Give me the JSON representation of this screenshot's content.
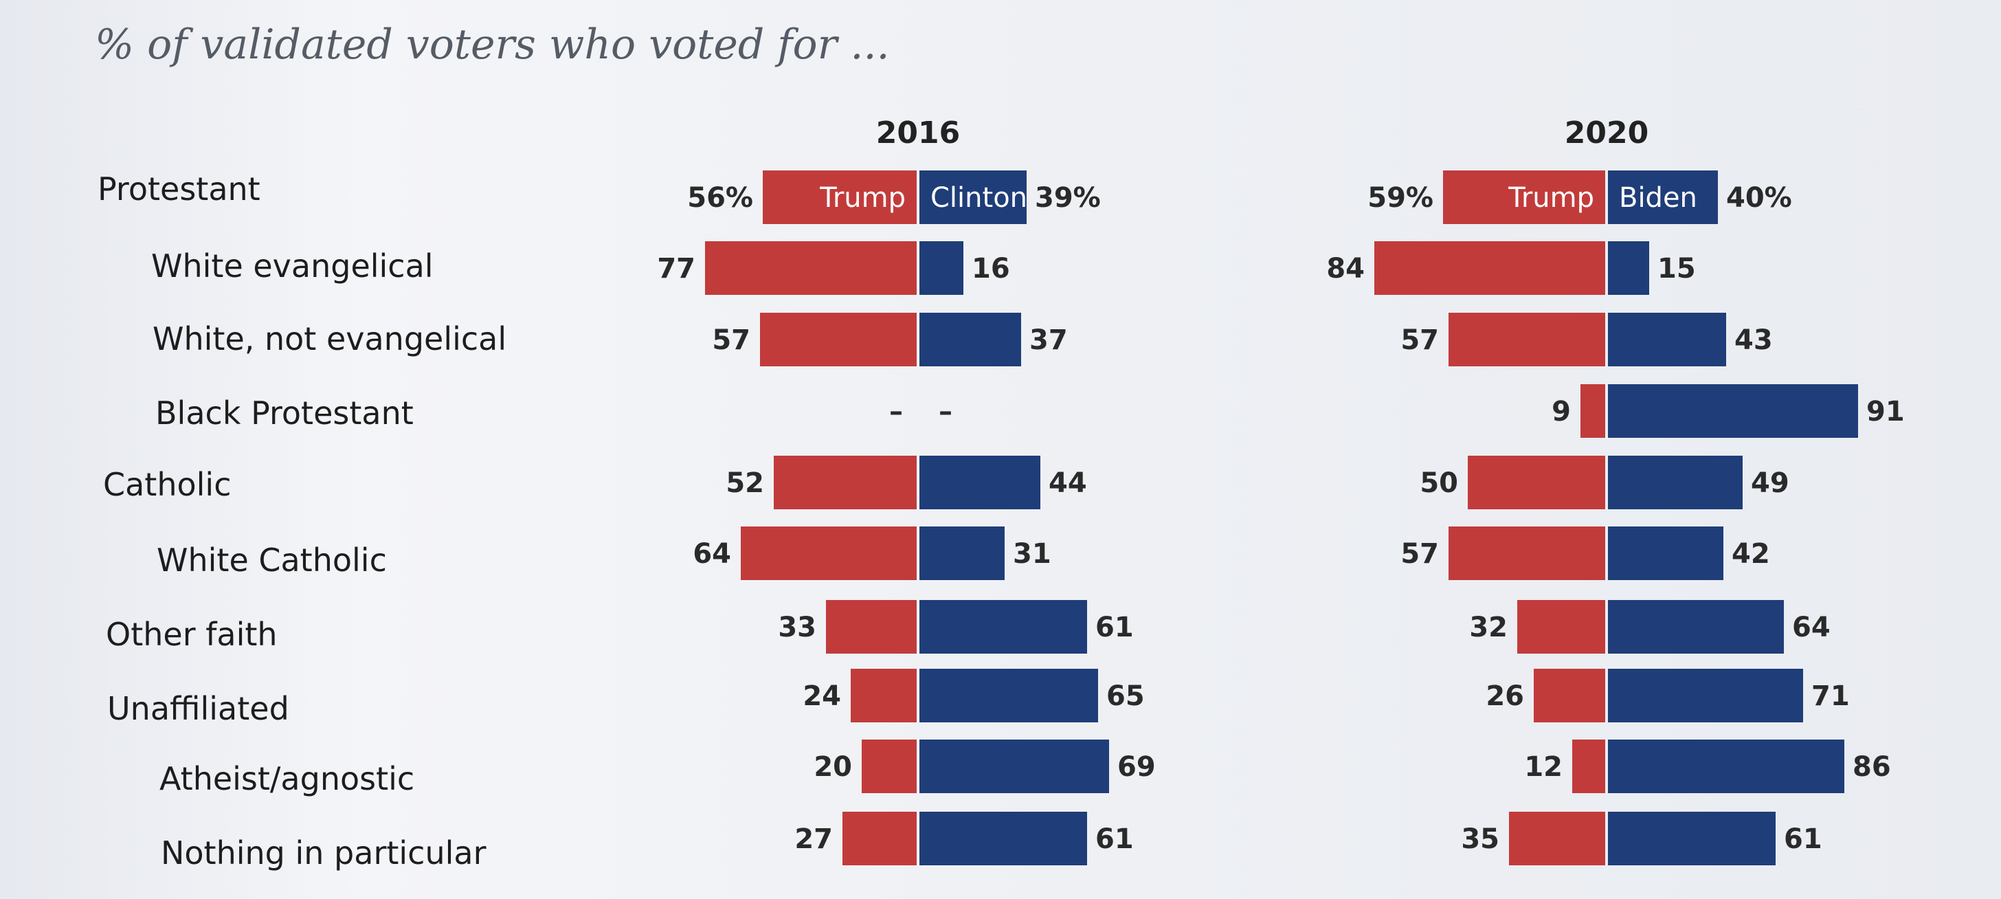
{
  "title": "% of validated voters who voted for ...",
  "colors": {
    "trump": "#c23b3b",
    "dem": "#1f3d78",
    "background": "#eef0f4"
  },
  "chart_data": {
    "type": "bar",
    "orientation": "horizontal-diverging",
    "title": "% of validated voters who voted for ...",
    "categories": [
      "Protestant",
      "White evangelical",
      "White, not evangelical",
      "Black Protestant",
      "Catholic",
      "White Catholic",
      "Other faith",
      "Unaffiliated",
      "Atheist/agnostic",
      "Nothing in particular"
    ],
    "indent": [
      false,
      true,
      true,
      true,
      false,
      true,
      false,
      false,
      true,
      true
    ],
    "panels": [
      {
        "year": "2016",
        "series": [
          {
            "name": "Trump",
            "values": [
              56,
              77,
              57,
              null,
              52,
              64,
              33,
              24,
              20,
              27
            ]
          },
          {
            "name": "Clinton",
            "values": [
              39,
              16,
              37,
              null,
              44,
              31,
              61,
              65,
              69,
              61
            ]
          }
        ],
        "missing_marker": "–"
      },
      {
        "year": "2020",
        "series": [
          {
            "name": "Trump",
            "values": [
              59,
              84,
              57,
              9,
              50,
              57,
              32,
              26,
              12,
              35
            ]
          },
          {
            "name": "Biden",
            "values": [
              40,
              15,
              43,
              91,
              49,
              42,
              64,
              71,
              86,
              61
            ]
          }
        ]
      }
    ],
    "first_row_value_suffix": "%"
  }
}
